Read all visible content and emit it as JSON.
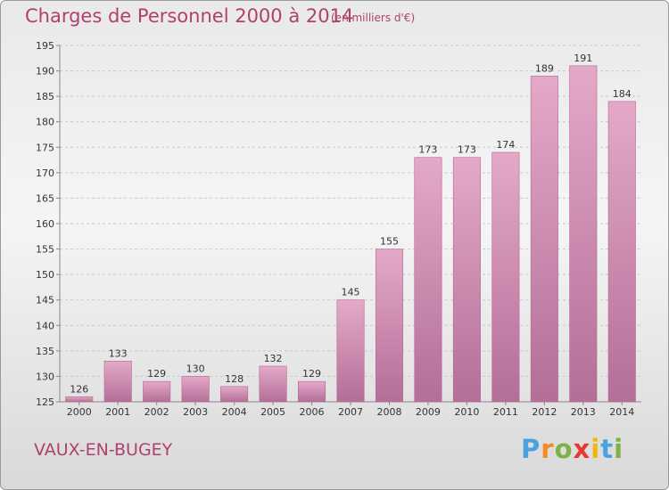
{
  "title": "Charges de Personnel 2000 à 2014",
  "subtitle": "(en milliers d'€)",
  "place": "VAUX-EN-BUGEY",
  "brand": {
    "letters": [
      "P",
      "r",
      "o",
      "x",
      "i",
      "t",
      "i"
    ],
    "colors": [
      "#4aa3df",
      "#f28c28",
      "#7cb342",
      "#e53935",
      "#f2b705",
      "#4aa3df",
      "#7cb342"
    ]
  },
  "colors": {
    "bar": "#d98ab4",
    "bar_edge": "#b7668f",
    "text_accent": "#b0406e"
  },
  "chart_data": {
    "type": "bar",
    "categories": [
      "2000",
      "2001",
      "2002",
      "2003",
      "2004",
      "2005",
      "2006",
      "2007",
      "2008",
      "2009",
      "2010",
      "2011",
      "2012",
      "2013",
      "2014"
    ],
    "values": [
      126,
      133,
      129,
      130,
      128,
      132,
      129,
      145,
      155,
      173,
      173,
      174,
      189,
      191,
      184
    ],
    "ylim": [
      125,
      195
    ],
    "yticks": [
      125,
      130,
      135,
      140,
      145,
      150,
      155,
      160,
      165,
      170,
      175,
      180,
      185,
      190,
      195
    ],
    "grid": true
  }
}
